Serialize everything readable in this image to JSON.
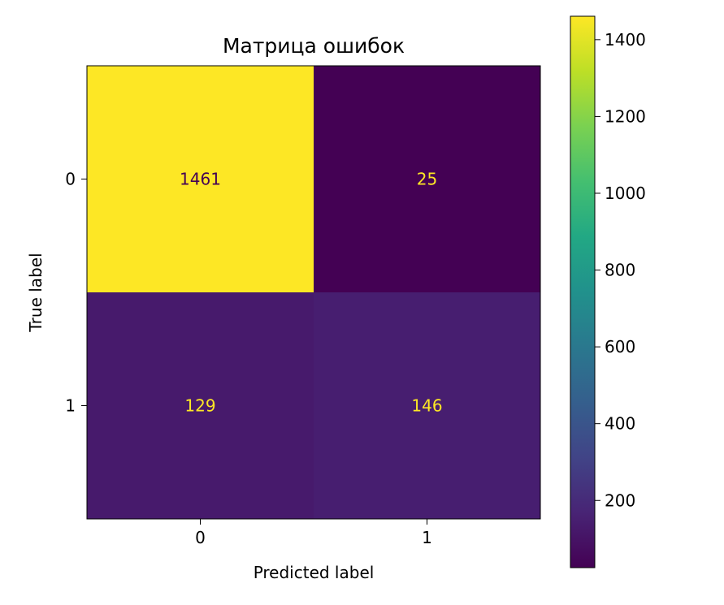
{
  "chart_data": {
    "type": "heatmap",
    "title": "Матрица ошибок",
    "xlabel": "Predicted label",
    "ylabel": "True label",
    "x_categories": [
      "0",
      "1"
    ],
    "y_categories": [
      "0",
      "1"
    ],
    "matrix": [
      [
        1461,
        25
      ],
      [
        129,
        146
      ]
    ],
    "colorbar": {
      "colormap": "viridis",
      "range": [
        25,
        1461
      ],
      "ticks": [
        200,
        400,
        600,
        800,
        1000,
        1200,
        1400
      ],
      "tick_labels": [
        "200",
        "400",
        "600",
        "800",
        "1000",
        "1200",
        "1400"
      ]
    }
  }
}
